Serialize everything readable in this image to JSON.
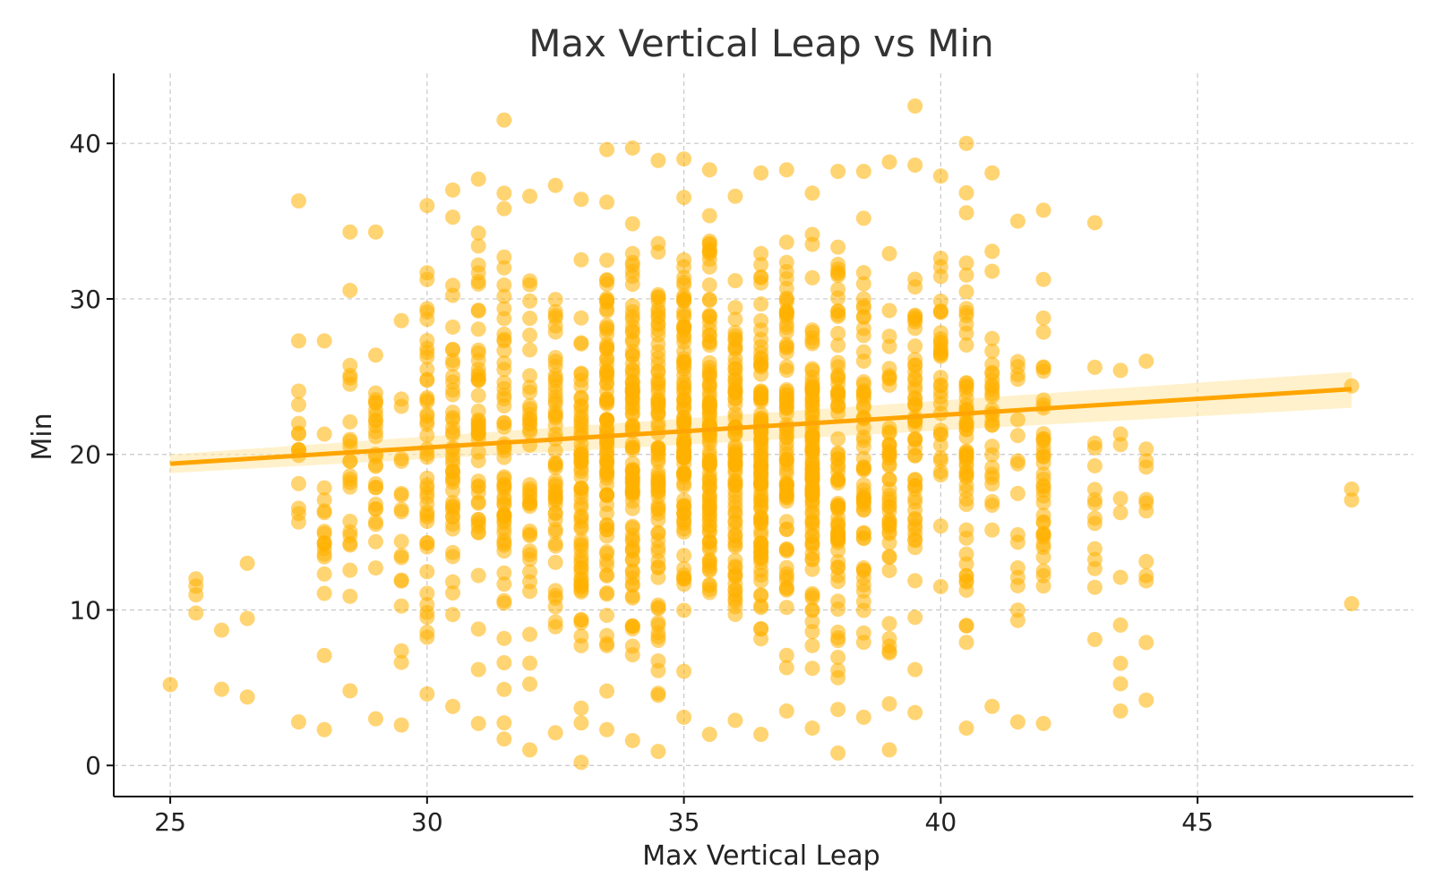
{
  "chart_data": {
    "type": "scatter",
    "title": "Max Vertical Leap  vs Min",
    "xlabel": "Max Vertical Leap",
    "ylabel": "Min",
    "xlim": [
      23.9,
      49.2
    ],
    "ylim": [
      -2,
      44.5
    ],
    "x_ticks": [
      25,
      30,
      35,
      40,
      45
    ],
    "y_ticks": [
      0,
      10,
      20,
      30,
      40
    ],
    "grid": true,
    "colors": {
      "points": "#FFB000",
      "line": "#FFA500",
      "band": "#FFE7A8"
    },
    "trend_line": {
      "x": [
        25,
        48
      ],
      "y": [
        19.4,
        24.2
      ]
    },
    "confidence_band": {
      "x": [
        25,
        48
      ],
      "upper": [
        20.0,
        25.3
      ],
      "lower": [
        18.8,
        23.0
      ]
    },
    "point_columns": [
      {
        "x": 25.0,
        "count": 1,
        "min": 5.2,
        "max": 5.2,
        "extra": []
      },
      {
        "x": 25.5,
        "count": 4,
        "min": 9.8,
        "max": 12.0,
        "extra": []
      },
      {
        "x": 26.0,
        "count": 2,
        "min": 4.9,
        "max": 8.7,
        "extra": []
      },
      {
        "x": 26.5,
        "count": 3,
        "min": 4.4,
        "max": 13.0,
        "extra": []
      },
      {
        "x": 27.5,
        "count": 16,
        "min": 2.8,
        "max": 36.3,
        "extra": []
      },
      {
        "x": 28.0,
        "count": 18,
        "min": 2.3,
        "max": 27.3,
        "extra": []
      },
      {
        "x": 28.5,
        "count": 24,
        "min": 4.8,
        "max": 34.3,
        "extra": []
      },
      {
        "x": 29.0,
        "count": 28,
        "min": 3.0,
        "max": 34.3,
        "extra": []
      },
      {
        "x": 29.5,
        "count": 18,
        "min": 2.6,
        "max": 28.6,
        "extra": []
      },
      {
        "x": 30.0,
        "count": 45,
        "min": 4.6,
        "max": 36.0,
        "extra": []
      },
      {
        "x": 30.5,
        "count": 45,
        "min": 3.8,
        "max": 37.0,
        "extra": []
      },
      {
        "x": 31.0,
        "count": 50,
        "min": 2.7,
        "max": 37.7,
        "extra": []
      },
      {
        "x": 31.5,
        "count": 60,
        "min": 1.7,
        "max": 41.5,
        "extra": []
      },
      {
        "x": 32.0,
        "count": 42,
        "min": 1.0,
        "max": 36.6,
        "extra": []
      },
      {
        "x": 32.5,
        "count": 55,
        "min": 2.1,
        "max": 37.3,
        "extra": []
      },
      {
        "x": 33.0,
        "count": 72,
        "min": 0.2,
        "max": 36.4,
        "extra": []
      },
      {
        "x": 33.5,
        "count": 90,
        "min": 2.3,
        "max": 39.6,
        "extra": []
      },
      {
        "x": 34.0,
        "count": 95,
        "min": 1.6,
        "max": 39.7,
        "extra": []
      },
      {
        "x": 34.5,
        "count": 85,
        "min": 0.9,
        "max": 38.9,
        "extra": []
      },
      {
        "x": 35.0,
        "count": 100,
        "min": 3.1,
        "max": 39.0,
        "extra": []
      },
      {
        "x": 35.5,
        "count": 110,
        "min": 2.0,
        "max": 38.3,
        "extra": []
      },
      {
        "x": 36.0,
        "count": 85,
        "min": 2.9,
        "max": 36.6,
        "extra": []
      },
      {
        "x": 36.5,
        "count": 105,
        "min": 2.0,
        "max": 38.1,
        "extra": []
      },
      {
        "x": 37.0,
        "count": 80,
        "min": 3.5,
        "max": 38.3,
        "extra": []
      },
      {
        "x": 37.5,
        "count": 100,
        "min": 2.4,
        "max": 36.8,
        "extra": []
      },
      {
        "x": 38.0,
        "count": 80,
        "min": 0.8,
        "max": 38.2,
        "extra": []
      },
      {
        "x": 38.5,
        "count": 60,
        "min": 3.1,
        "max": 38.2,
        "extra": []
      },
      {
        "x": 39.0,
        "count": 50,
        "min": 1.0,
        "max": 38.8,
        "extra": []
      },
      {
        "x": 39.5,
        "count": 55,
        "min": 3.4,
        "max": 38.6,
        "extra": [
          42.4
        ]
      },
      {
        "x": 40.0,
        "count": 35,
        "min": 11.5,
        "max": 37.9,
        "extra": []
      },
      {
        "x": 40.5,
        "count": 60,
        "min": 2.4,
        "max": 40.0,
        "extra": []
      },
      {
        "x": 41.0,
        "count": 30,
        "min": 3.8,
        "max": 38.1,
        "extra": []
      },
      {
        "x": 41.5,
        "count": 18,
        "min": 2.8,
        "max": 35.0,
        "extra": []
      },
      {
        "x": 42.0,
        "count": 40,
        "min": 2.7,
        "max": 35.7,
        "extra": []
      },
      {
        "x": 43.0,
        "count": 14,
        "min": 8.1,
        "max": 25.6,
        "extra": [
          34.9
        ]
      },
      {
        "x": 43.5,
        "count": 10,
        "min": 3.5,
        "max": 25.4,
        "extra": []
      },
      {
        "x": 44.0,
        "count": 12,
        "min": 4.2,
        "max": 26.0,
        "extra": []
      },
      {
        "x": 48.0,
        "count": 4,
        "min": 10.4,
        "max": 24.4,
        "extra": []
      }
    ]
  }
}
